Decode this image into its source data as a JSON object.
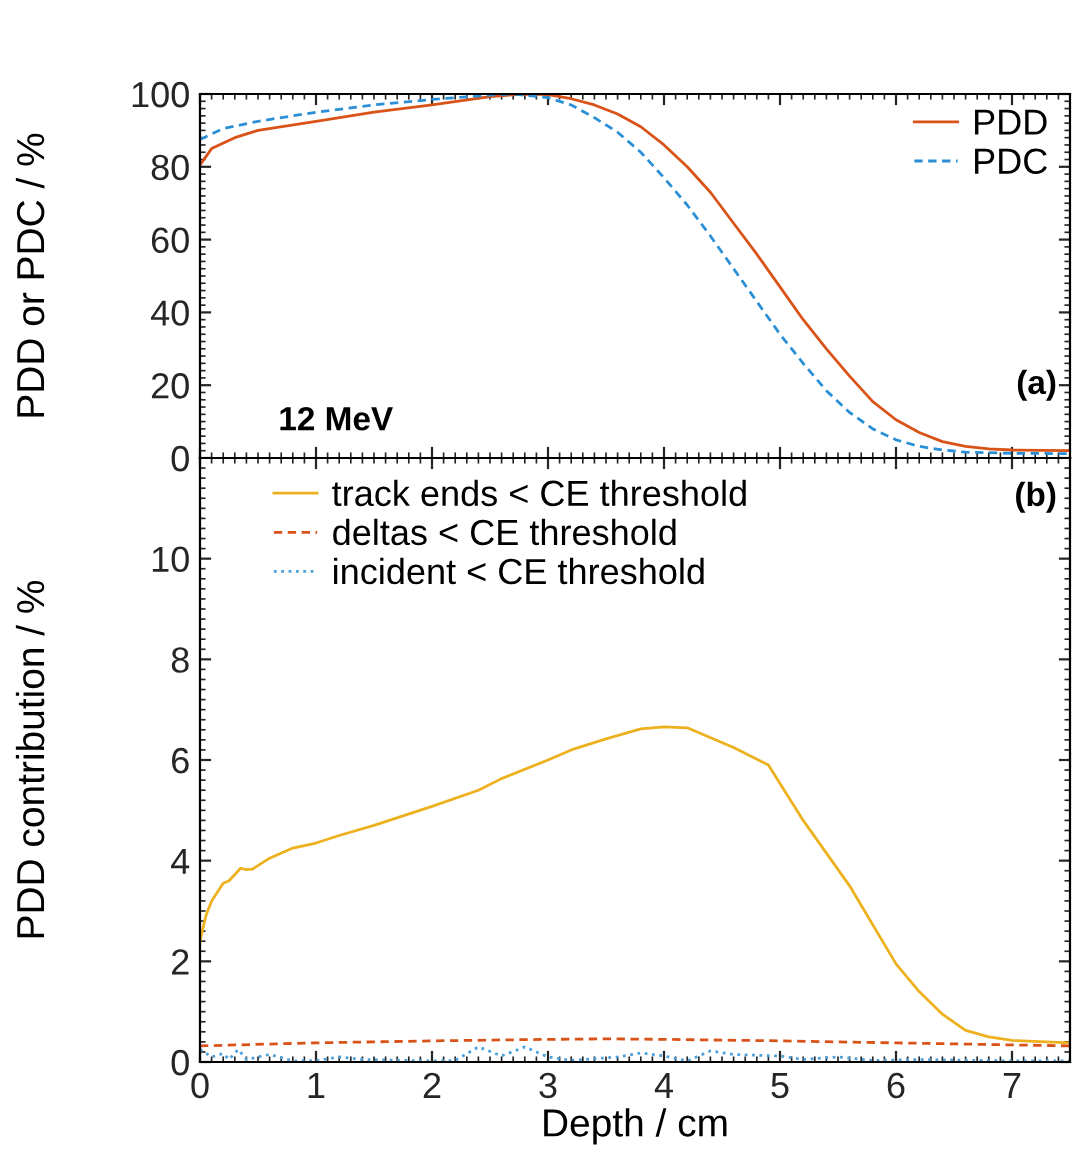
{
  "chart_data": [
    {
      "type": "line",
      "ylabel": "PDD or PDC / %",
      "xlim": [
        0,
        7.5
      ],
      "ylim": [
        0,
        100
      ],
      "xticks": [
        0,
        1,
        2,
        3,
        4,
        5,
        6,
        7
      ],
      "yticks": [
        0,
        20,
        40,
        60,
        80,
        100
      ],
      "tick_labels": "y",
      "legend": "top right",
      "grid": false,
      "annotations": [
        "(a)",
        "12 MeV"
      ],
      "series": [
        {
          "name": "PDD",
          "color": "#d95319",
          "line_style": "solid",
          "x": [
            0,
            0.1,
            0.3,
            0.5,
            1,
            1.5,
            2,
            2.5,
            2.8,
            3,
            3.2,
            3.4,
            3.6,
            3.8,
            4,
            4.2,
            4.4,
            4.6,
            4.8,
            5,
            5.2,
            5.4,
            5.6,
            5.8,
            6,
            6.2,
            6.4,
            6.6,
            6.8,
            7,
            7.5
          ],
          "values": [
            80.5,
            85,
            88,
            90,
            92.5,
            95,
            97,
            99.3,
            100,
            99.8,
            98.7,
            97,
            94.5,
            91,
            86,
            80,
            73,
            64.5,
            56,
            47,
            38,
            30,
            22.5,
            15.5,
            10.5,
            7,
            4.5,
            3.2,
            2.5,
            2.2,
            2
          ]
        },
        {
          "name": "PDC",
          "color": "#2b8fd6",
          "line_style": "dashed",
          "x": [
            0,
            0.2,
            0.5,
            1,
            1.5,
            2,
            2.5,
            2.7,
            3,
            3.2,
            3.4,
            3.6,
            3.8,
            4,
            4.2,
            4.4,
            4.6,
            4.8,
            5,
            5.2,
            5.4,
            5.6,
            5.8,
            6,
            6.2,
            6.4,
            6.6,
            7,
            7.5
          ],
          "values": [
            87.5,
            90.5,
            92.5,
            95,
            97,
            98.5,
            99.7,
            100,
            99,
            97,
            93.5,
            89.5,
            84,
            77,
            69.5,
            61,
            52,
            43,
            34,
            26,
            18.5,
            12.5,
            8,
            5,
            3.2,
            2.2,
            1.6,
            1.3,
            1.2
          ]
        }
      ]
    },
    {
      "type": "line",
      "xlabel": "Depth / cm",
      "ylabel": "PDD contribution / %",
      "xlim": [
        0,
        7.5
      ],
      "ylim": [
        0,
        12
      ],
      "xticks": [
        0,
        1,
        2,
        3,
        4,
        5,
        6,
        7
      ],
      "yticks": [
        0,
        2,
        4,
        6,
        8,
        10
      ],
      "legend": "top",
      "grid": false,
      "annotations": [
        "(b)"
      ],
      "series": [
        {
          "name": "track ends < CE threshold",
          "color": "#edb120",
          "line_style": "solid",
          "x": [
            0,
            0.05,
            0.1,
            0.2,
            0.25,
            0.35,
            0.4,
            0.45,
            0.6,
            0.8,
            1,
            1.2,
            1.5,
            2,
            2.4,
            2.6,
            3,
            3.2,
            3.5,
            3.8,
            4,
            4.2,
            4.6,
            4.9,
            5.2,
            5.6,
            6,
            6.2,
            6.4,
            6.6,
            6.8,
            7,
            7.5
          ],
          "values": [
            2.4,
            2.9,
            3.2,
            3.55,
            3.6,
            3.85,
            3.82,
            3.83,
            4.05,
            4.25,
            4.35,
            4.5,
            4.7,
            5.08,
            5.4,
            5.63,
            6.0,
            6.2,
            6.42,
            6.62,
            6.66,
            6.64,
            6.25,
            5.9,
            4.8,
            3.5,
            1.95,
            1.4,
            0.95,
            0.63,
            0.5,
            0.43,
            0.38
          ]
        },
        {
          "name": "deltas < CE threshold",
          "color": "#d95319",
          "line_style": "dashed",
          "x": [
            0,
            1,
            2,
            3,
            3.5,
            4,
            5,
            6,
            7,
            7.5
          ],
          "values": [
            0.32,
            0.38,
            0.42,
            0.45,
            0.46,
            0.45,
            0.42,
            0.38,
            0.34,
            0.32
          ]
        },
        {
          "name": "incident < CE threshold",
          "color": "#4da0d8",
          "line_style": "dotted",
          "x": [
            0,
            0.1,
            0.2,
            0.25,
            0.33,
            0.4,
            0.6,
            0.8,
            1,
            1.2,
            1.4,
            2,
            2.2,
            2.4,
            2.6,
            2.8,
            3,
            3.2,
            3.6,
            3.8,
            4,
            4.2,
            4.4,
            4.6,
            5,
            5.2,
            5.5,
            5.8,
            6.2,
            7,
            7.5
          ],
          "values": [
            0.25,
            0.1,
            0.17,
            0.05,
            0.25,
            0.05,
            0.15,
            0.02,
            0.03,
            0.1,
            0.05,
            0.02,
            0.03,
            0.3,
            0.12,
            0.3,
            0.1,
            0.03,
            0.1,
            0.18,
            0.12,
            0.02,
            0.22,
            0.15,
            0.12,
            0.05,
            0.1,
            0.03,
            0.05,
            0.02,
            0.02
          ]
        }
      ]
    }
  ]
}
